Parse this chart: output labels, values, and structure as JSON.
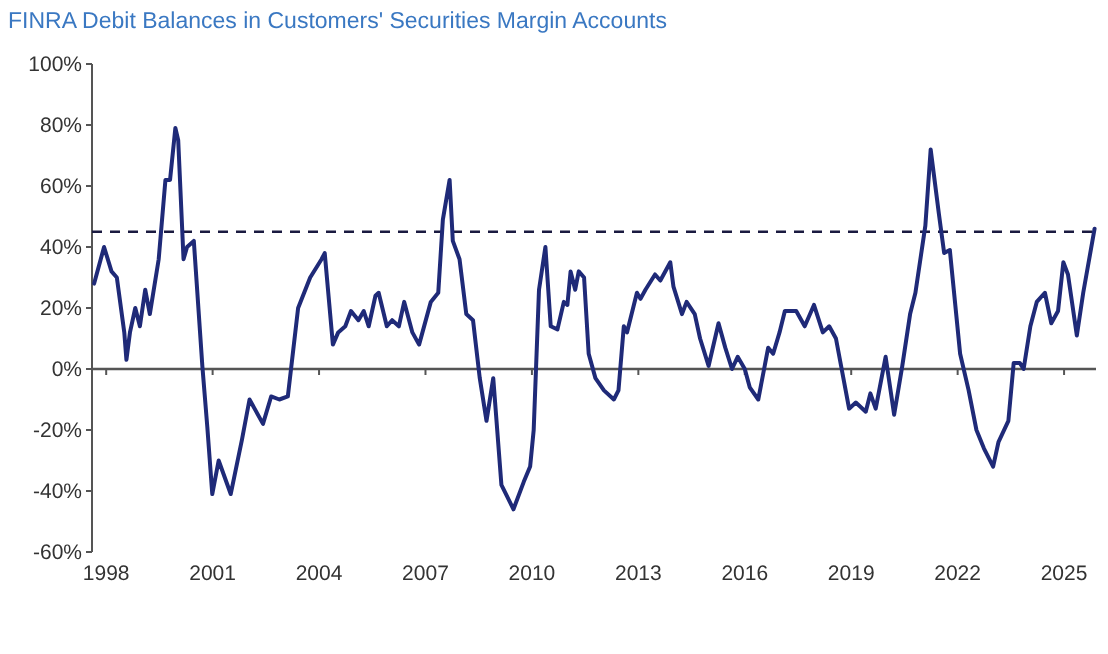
{
  "chart_data": {
    "type": "line",
    "title": "FINRA Debit Balances in Customers' Securities Margin Accounts",
    "xlim": [
      1997.6,
      2025.9
    ],
    "xticks": [
      1998,
      2001,
      2004,
      2007,
      2010,
      2013,
      2016,
      2019,
      2022,
      2025
    ],
    "ylim": [
      -60,
      100
    ],
    "yticks": [
      {
        "value": -60,
        "label": "-60%"
      },
      {
        "value": -40,
        "label": "-40%"
      },
      {
        "value": -20,
        "label": "-20%"
      },
      {
        "value": 0,
        "label": "0%"
      },
      {
        "value": 20,
        "label": "20%"
      },
      {
        "value": 40,
        "label": "40%"
      },
      {
        "value": 60,
        "label": "60%"
      },
      {
        "value": 80,
        "label": "80%"
      },
      {
        "value": 100,
        "label": "100%"
      }
    ],
    "grid": false,
    "marker": "none",
    "line_style": "solid",
    "ref_lines": [
      {
        "axis": "y",
        "value": 0,
        "color": "#555555",
        "line_style": "solid"
      },
      {
        "axis": "y",
        "value": 45,
        "color": "#1a1a40",
        "line_style": "dashed"
      }
    ],
    "series": [
      {
        "color": "#1f2a78",
        "x": [
          1997.66,
          1997.94,
          1998.15,
          1998.3,
          1998.51,
          1998.57,
          1998.67,
          1998.82,
          1998.95,
          1999.1,
          1999.23,
          1999.48,
          1999.67,
          1999.8,
          1999.95,
          2000.03,
          2000.18,
          2000.28,
          2000.47,
          2000.71,
          2000.85,
          2000.99,
          2001.17,
          2001.51,
          2001.83,
          2002.04,
          2002.42,
          2002.65,
          2002.88,
          2003.12,
          2003.41,
          2003.75,
          2004.07,
          2004.16,
          2004.39,
          2004.54,
          2004.74,
          2004.9,
          2005.11,
          2005.26,
          2005.4,
          2005.59,
          2005.68,
          2005.91,
          2006.06,
          2006.25,
          2006.4,
          2006.63,
          2006.82,
          2007.15,
          2007.36,
          2007.49,
          2007.68,
          2007.77,
          2007.96,
          2008.15,
          2008.34,
          2008.53,
          2008.72,
          2008.91,
          2009.14,
          2009.48,
          2009.77,
          2009.95,
          2010.05,
          2010.2,
          2010.38,
          2010.53,
          2010.72,
          2010.9,
          2011.0,
          2011.09,
          2011.22,
          2011.32,
          2011.47,
          2011.6,
          2011.79,
          2012.03,
          2012.31,
          2012.44,
          2012.59,
          2012.68,
          2012.96,
          2013.06,
          2013.2,
          2013.47,
          2013.62,
          2013.9,
          2013.99,
          2014.23,
          2014.36,
          2014.59,
          2014.74,
          2014.98,
          2015.26,
          2015.45,
          2015.64,
          2015.8,
          2016.0,
          2016.14,
          2016.38,
          2016.66,
          2016.8,
          2016.98,
          2017.13,
          2017.45,
          2017.69,
          2017.95,
          2018.2,
          2018.38,
          2018.57,
          2018.94,
          2019.13,
          2019.41,
          2019.54,
          2019.69,
          2019.97,
          2020.21,
          2020.44,
          2020.66,
          2020.81,
          2021.09,
          2021.24,
          2021.47,
          2021.62,
          2021.78,
          2022.07,
          2022.31,
          2022.53,
          2022.74,
          2023.0,
          2023.15,
          2023.43,
          2023.58,
          2023.75,
          2023.86,
          2024.05,
          2024.23,
          2024.46,
          2024.64,
          2024.83,
          2024.98,
          2025.11,
          2025.36,
          2025.54,
          2025.86
        ],
        "values": [
          28,
          40,
          32,
          30,
          12,
          3,
          12,
          20,
          14,
          26,
          18,
          36,
          62,
          62,
          79,
          75,
          36,
          40,
          42,
          1,
          -19,
          -41,
          -30,
          -41,
          -23,
          -10,
          -18,
          -9,
          -10,
          -9,
          20,
          30,
          36,
          38,
          8,
          12,
          14,
          19,
          16,
          19,
          14,
          24,
          25,
          14,
          16,
          14,
          22,
          12,
          8,
          22,
          25,
          49,
          62,
          42,
          36,
          18,
          16,
          -3,
          -17,
          -3,
          -38,
          -46,
          -37,
          -32,
          -20,
          26,
          40,
          14,
          13,
          22,
          21,
          32,
          26,
          32,
          30,
          5,
          -3,
          -7,
          -10,
          -7,
          14,
          12,
          25,
          23,
          26,
          31,
          29,
          35,
          27,
          18,
          22,
          18,
          10,
          1,
          15,
          7,
          0,
          4,
          0,
          -6,
          -10,
          7,
          5,
          12,
          19,
          19,
          14,
          21,
          12,
          14,
          10,
          -13,
          -11,
          -14,
          -8,
          -13,
          4,
          -15,
          1,
          18,
          25,
          47,
          72,
          51,
          38,
          39,
          5,
          -7,
          -20,
          -26,
          -32,
          -24,
          -17,
          2,
          2,
          0,
          14,
          22,
          25,
          15,
          19,
          35,
          31,
          11,
          25,
          46
        ]
      }
    ]
  }
}
